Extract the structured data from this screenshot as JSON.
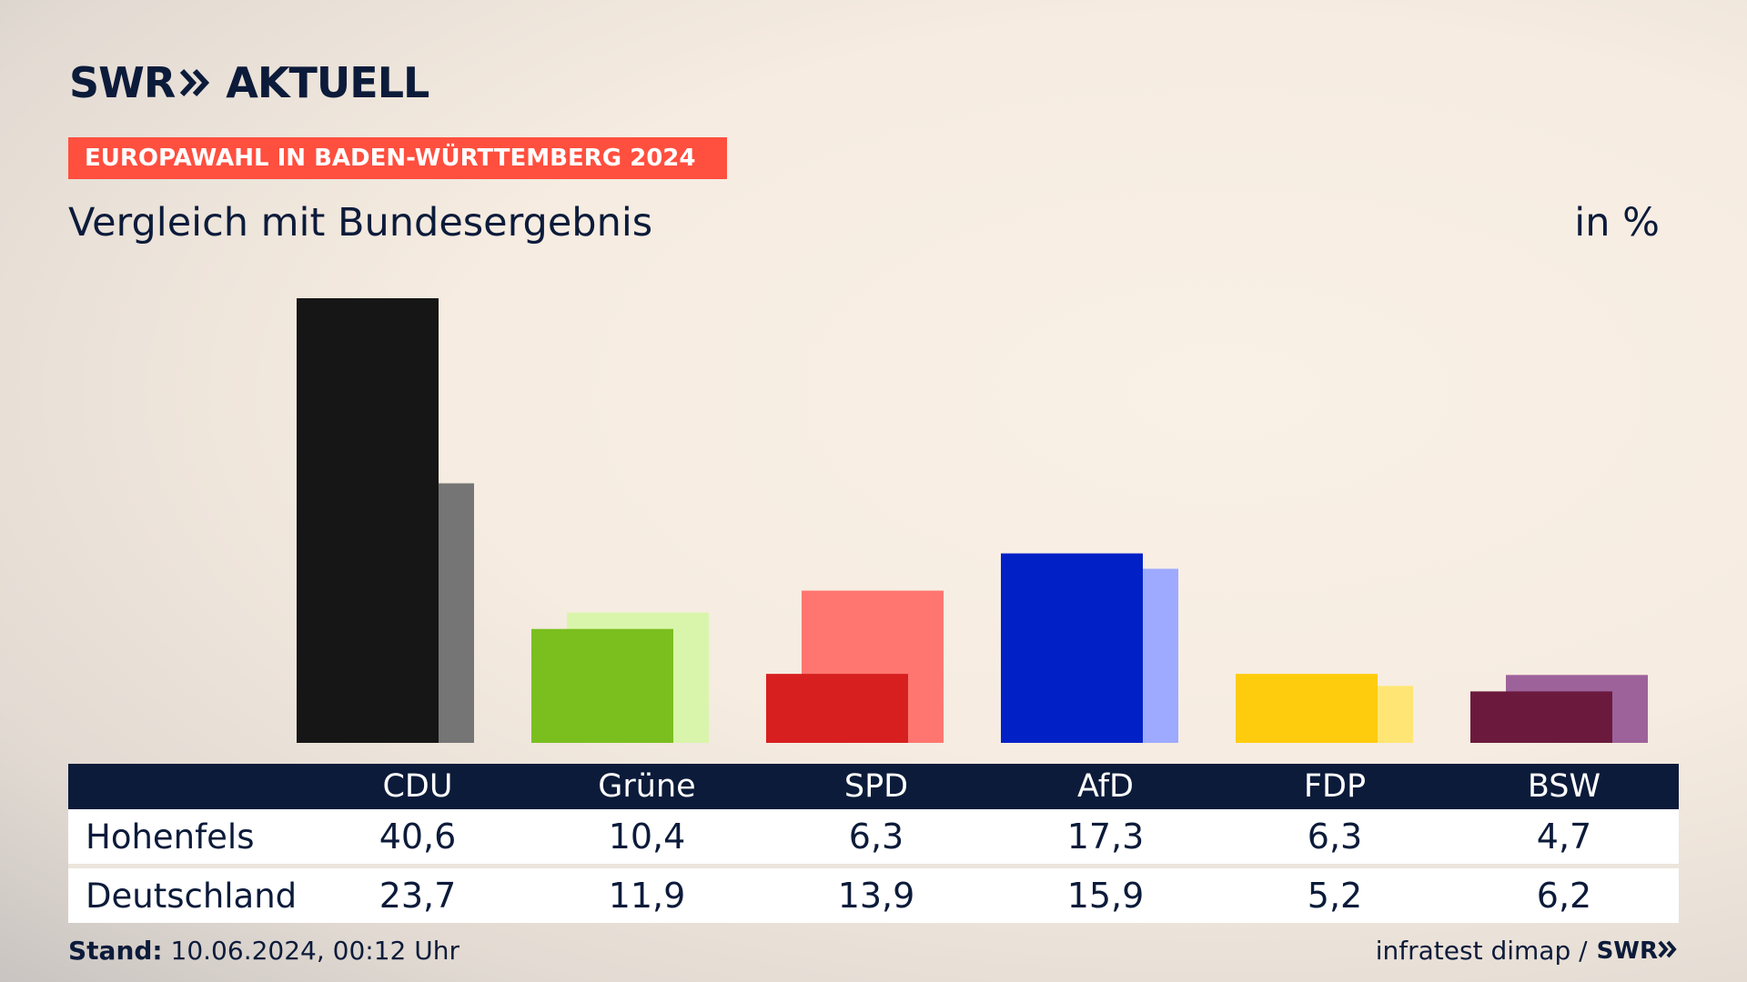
{
  "brand": {
    "logo_left": "SWR",
    "logo_right": "AKTUELL"
  },
  "banner": "EUROPAWAHL IN BADEN-WÜRTTEMBERG 2024",
  "subtitle": "Vergleich mit Bundesergebnis",
  "unit": "in %",
  "footer": {
    "stand_label": "Stand:",
    "stand_value": "10.06.2024, 00:12 Uhr",
    "source": "infratest dimap /",
    "source_logo": "SWR"
  },
  "chart_data": {
    "type": "bar",
    "categories": [
      "CDU",
      "Grüne",
      "SPD",
      "AfD",
      "FDP",
      "BSW"
    ],
    "series": [
      {
        "name": "Hohenfels",
        "values": [
          40.6,
          10.4,
          6.3,
          17.3,
          6.3,
          4.7
        ],
        "labels": [
          "40,6",
          "10,4",
          "6,3",
          "17,3",
          "6,3",
          "4,7"
        ]
      },
      {
        "name": "Deutschland",
        "values": [
          23.7,
          11.9,
          13.9,
          15.9,
          5.2,
          6.2
        ],
        "labels": [
          "23,7",
          "11,9",
          "13,9",
          "15,9",
          "5,2",
          "6,2"
        ]
      }
    ],
    "colors": {
      "primary": [
        "#161616",
        "#7abf1e",
        "#d81f1f",
        "#0121c7",
        "#ffcc0d",
        "#6b1a3e"
      ],
      "secondary": [
        "#757575",
        "#d9f5ab",
        "#ff7670",
        "#9daaff",
        "#ffe574",
        "#9e629a"
      ]
    },
    "ylim": [
      0,
      40.6
    ]
  }
}
